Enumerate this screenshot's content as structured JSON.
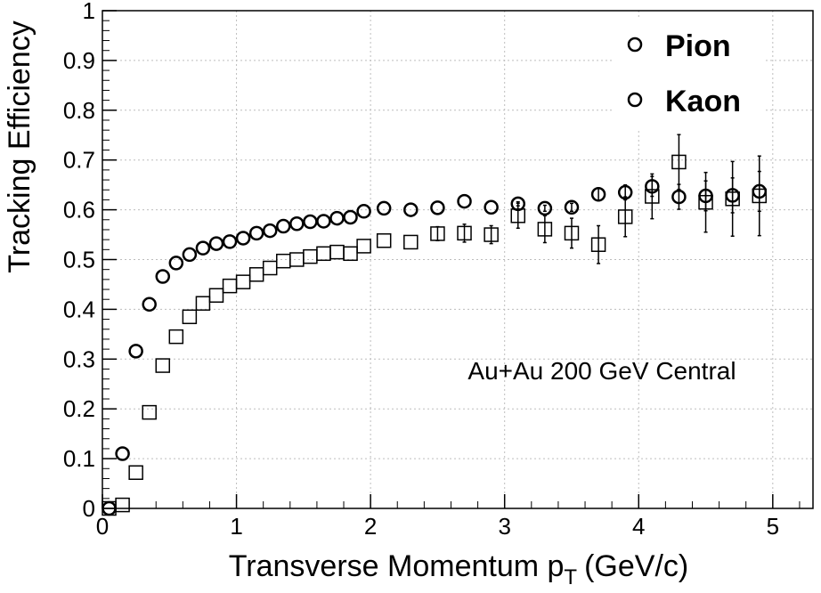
{
  "chart_data": {
    "type": "scatter",
    "xlabel": "Transverse Momentum p",
    "xlabel_sub": "T",
    "xlabel_unit": "(GeV/c)",
    "ylabel": "Tracking Efficiency",
    "xlim": [
      0,
      5.3
    ],
    "ylim": [
      0,
      1
    ],
    "x_ticks": [
      0,
      1,
      2,
      3,
      4,
      5
    ],
    "x_tick_labels": [
      "0",
      "1",
      "2",
      "3",
      "4",
      "5"
    ],
    "y_ticks": [
      0,
      0.1,
      0.2,
      0.3,
      0.4,
      0.5,
      0.6,
      0.7,
      0.8,
      0.9,
      1
    ],
    "y_tick_labels": [
      "0",
      "0.1",
      "0.2",
      "0.3",
      "0.4",
      "0.5",
      "0.6",
      "0.7",
      "0.8",
      "0.9",
      "1"
    ],
    "grid": true,
    "legend_position": "top-right",
    "annotation": "Au+Au 200 GeV Central",
    "series": [
      {
        "name": "Pion",
        "marker": "open-circle",
        "legend_marker": "open-circle",
        "color": "#000000",
        "x": [
          0.05,
          0.15,
          0.25,
          0.35,
          0.45,
          0.55,
          0.65,
          0.75,
          0.85,
          0.95,
          1.05,
          1.15,
          1.25,
          1.35,
          1.45,
          1.55,
          1.65,
          1.75,
          1.85,
          1.95,
          2.1,
          2.3,
          2.5,
          2.7,
          2.9,
          3.1,
          3.3,
          3.5,
          3.7,
          3.9,
          4.1,
          4.3,
          4.5,
          4.7,
          4.9
        ],
        "y": [
          0.0,
          0.11,
          0.316,
          0.41,
          0.466,
          0.493,
          0.51,
          0.523,
          0.532,
          0.536,
          0.543,
          0.553,
          0.558,
          0.567,
          0.572,
          0.576,
          0.577,
          0.583,
          0.585,
          0.597,
          0.603,
          0.6,
          0.604,
          0.617,
          0.605,
          0.612,
          0.603,
          0.605,
          0.631,
          0.635,
          0.647,
          0.626,
          0.628,
          0.629,
          0.637
        ],
        "yerr": [
          0,
          0,
          0,
          0,
          0,
          0,
          0,
          0,
          0,
          0,
          0,
          0,
          0,
          0,
          0,
          0,
          0,
          0,
          0,
          0,
          0,
          0,
          0,
          0,
          0,
          0.004,
          0.006,
          0.008,
          0.012,
          0.015,
          0.02,
          0.025,
          0.03,
          0.035,
          0.04
        ]
      },
      {
        "name": "Kaon",
        "marker": "open-square",
        "legend_marker": "open-circle",
        "color": "#000000",
        "x": [
          0.05,
          0.15,
          0.25,
          0.35,
          0.45,
          0.55,
          0.65,
          0.75,
          0.85,
          0.95,
          1.05,
          1.15,
          1.25,
          1.35,
          1.45,
          1.55,
          1.65,
          1.75,
          1.85,
          1.95,
          2.1,
          2.3,
          2.5,
          2.7,
          2.9,
          3.1,
          3.3,
          3.5,
          3.7,
          3.9,
          4.1,
          4.3,
          4.5,
          4.7,
          4.9
        ],
        "y": [
          0.0,
          0.007,
          0.072,
          0.193,
          0.287,
          0.345,
          0.385,
          0.412,
          0.428,
          0.447,
          0.455,
          0.47,
          0.483,
          0.497,
          0.5,
          0.506,
          0.512,
          0.515,
          0.512,
          0.527,
          0.538,
          0.535,
          0.552,
          0.553,
          0.55,
          0.588,
          0.561,
          0.553,
          0.53,
          0.586,
          0.627,
          0.696,
          0.615,
          0.622,
          0.628
        ],
        "yerr": [
          0,
          0,
          0,
          0,
          0,
          0,
          0,
          0,
          0,
          0,
          0,
          0,
          0,
          0,
          0,
          0,
          0,
          0,
          0,
          0,
          0,
          0,
          0.014,
          0.018,
          0.018,
          0.025,
          0.027,
          0.03,
          0.038,
          0.04,
          0.045,
          0.055,
          0.06,
          0.075,
          0.08
        ]
      }
    ]
  }
}
